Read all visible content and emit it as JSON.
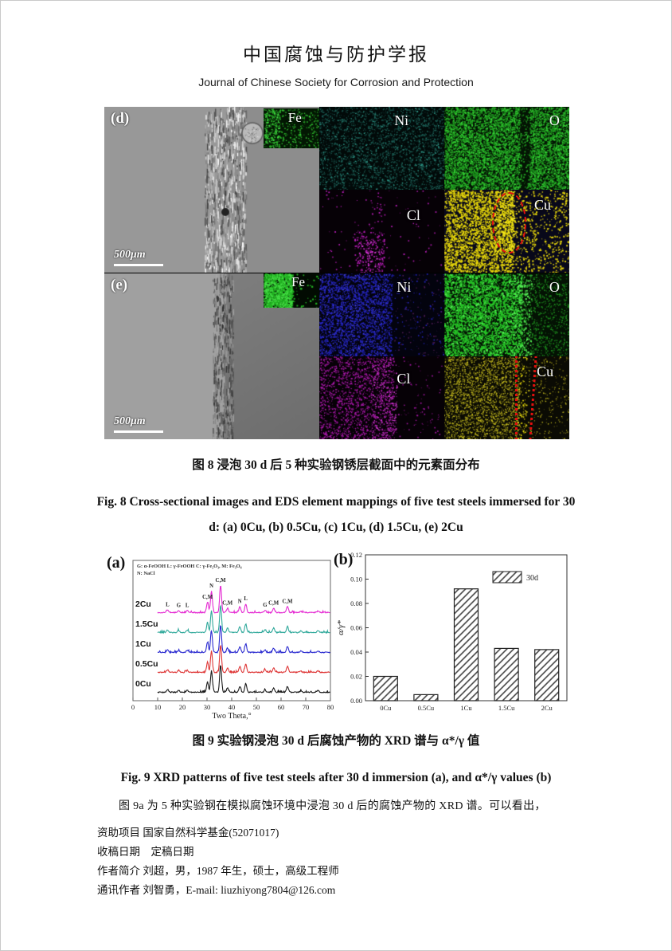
{
  "header": {
    "title_cn": "中国腐蚀与防护学报",
    "title_en": "Journal of Chinese Society for Corrosion and Protection"
  },
  "figure8": {
    "map_labels": {
      "fe": "Fe",
      "ni": "Ni",
      "o": "O",
      "cl": "Cl",
      "cu": "Cu"
    },
    "rows": [
      {
        "label": "(d)",
        "scale": "500μm"
      },
      {
        "label": "(e)",
        "scale": "500μm"
      }
    ],
    "caption_cn": "图 8 浸泡 30 d 后 5 种实验钢锈层截面中的元素面分布",
    "caption_en_line1": "Fig. 8 Cross-sectional images and EDS element mappings of five test steels immersed for 30",
    "caption_en_line2": "d: (a) 0Cu, (b) 0.5Cu, (c) 1Cu, (d) 1.5Cu, (e) 2Cu"
  },
  "figure9": {
    "caption_cn": "图 9 实验钢浸泡 30 d 后腐蚀产物的 XRD 谱与 α*/γ 值",
    "caption_en": "Fig. 9 XRD patterns of five test steels after 30 d immersion (a), and α*/γ values (b)"
  },
  "body": {
    "paragraph": "图 9a 为 5 种实验钢在模拟腐蚀环境中浸泡 30 d 后的腐蚀产物的 XRD 谱。可以看出，"
  },
  "footer": {
    "lines": [
      "资助项目 国家自然科学基金(52071017)",
      "收稿日期　定稿日期",
      "作者简介 刘超，男，1987 年生，硕士，高级工程师",
      "通讯作者 刘智勇，E-mail: liuzhiyong7804@126.com"
    ]
  },
  "colors": {
    "fe_green": "#2db82d",
    "ni_d_teal": "#1c5f56",
    "ni_e_blue": "#2626c4",
    "o_green": "#28c828",
    "cl_magenta": "#b91db9",
    "cu_yellow": "#e6d60a",
    "highlight_red": "#e01010"
  },
  "chart_data": [
    {
      "id": "xrd",
      "type": "line",
      "panel_label": "(a)",
      "xlabel": "Two Theta,°",
      "xlim": [
        0,
        80
      ],
      "xticks": [
        0,
        10,
        20,
        30,
        40,
        50,
        60,
        70,
        80
      ],
      "legend_lines": [
        "G: α-FeOOH    L: γ-FeOOH    C: γ-Fe₂O₃,  M: Fe₃O₄",
        "N: NaCl"
      ],
      "series_order": "bottom_to_top",
      "series": [
        {
          "name": "0Cu",
          "color": "#1a1a1a"
        },
        {
          "name": "0.5Cu",
          "color": "#de3535"
        },
        {
          "name": "1Cu",
          "color": "#2b2bd0"
        },
        {
          "name": "1.5Cu",
          "color": "#2ea89a"
        },
        {
          "name": "2Cu",
          "color": "#e52ad2"
        }
      ],
      "peaks": [
        {
          "two_theta": 14.0,
          "rel_intensity": 0.1,
          "label": "L"
        },
        {
          "two_theta": 18.5,
          "rel_intensity": 0.08,
          "label": "G"
        },
        {
          "two_theta": 22.0,
          "rel_intensity": 0.08,
          "label": "L"
        },
        {
          "two_theta": 30.2,
          "rel_intensity": 0.38,
          "label": "C,M"
        },
        {
          "two_theta": 31.8,
          "rel_intensity": 0.8,
          "label": "N"
        },
        {
          "two_theta": 35.5,
          "rel_intensity": 1.0,
          "label": "C,M"
        },
        {
          "two_theta": 38.3,
          "rel_intensity": 0.16,
          "label": "C,M"
        },
        {
          "two_theta": 43.3,
          "rel_intensity": 0.22,
          "label": "N"
        },
        {
          "two_theta": 45.7,
          "rel_intensity": 0.32,
          "label": "L"
        },
        {
          "two_theta": 53.5,
          "rel_intensity": 0.09,
          "label": "G"
        },
        {
          "two_theta": 57.0,
          "rel_intensity": 0.16,
          "label": "C,M"
        },
        {
          "two_theta": 62.6,
          "rel_intensity": 0.22,
          "label": "C,M"
        },
        {
          "two_theta": 68.0,
          "rel_intensity": 0.05,
          "label": ""
        },
        {
          "two_theta": 75.0,
          "rel_intensity": 0.06,
          "label": ""
        }
      ]
    },
    {
      "id": "alpha_gamma_ratio",
      "type": "bar",
      "panel_label": "(b)",
      "categories": [
        "0Cu",
        "0.5Cu",
        "1Cu",
        "1.5Cu",
        "2Cu"
      ],
      "values": [
        0.02,
        0.005,
        0.092,
        0.043,
        0.042
      ],
      "ylabel": "α/γ*",
      "ylim": [
        0,
        0.12
      ],
      "yticks": [
        0.0,
        0.02,
        0.04,
        0.06,
        0.08,
        0.1,
        0.12
      ],
      "legend": "30d",
      "legend_position": "upper-right",
      "grid": false
    }
  ]
}
